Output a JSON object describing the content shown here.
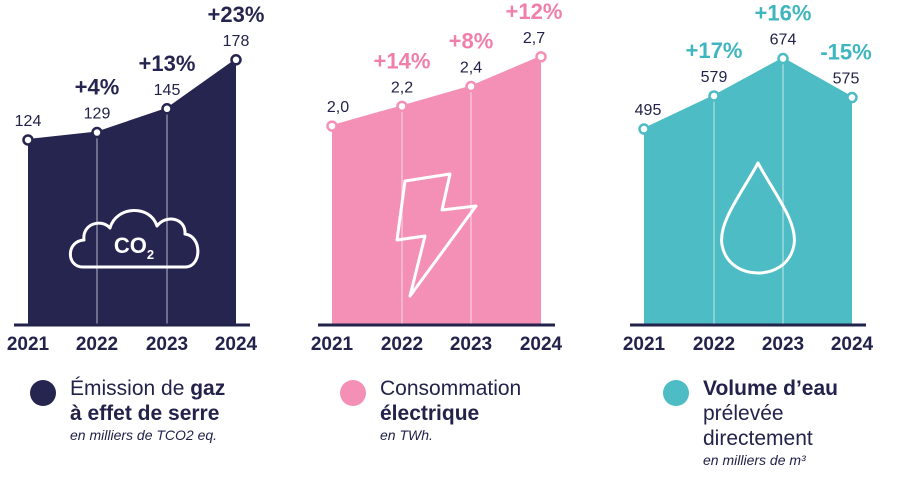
{
  "chart_data": [
    {
      "type": "area",
      "categories": [
        "2021",
        "2022",
        "2023",
        "2024"
      ],
      "values": [
        124,
        129,
        145,
        178
      ],
      "value_labels": [
        "124",
        "129",
        "145",
        "178"
      ],
      "changes": [
        "",
        "+4%",
        "+13%",
        "+23%"
      ],
      "ylim": [
        0,
        190
      ],
      "color": "#262550",
      "change_color": "#262550",
      "icon": "co2-cloud-icon",
      "icon_text": "CO2",
      "legend": {
        "lines": [
          [
            {
              "t": "Émission de ",
              "b": false
            },
            {
              "t": "gaz",
              "b": true
            }
          ],
          [
            {
              "t": "à effet de serre",
              "b": true
            }
          ]
        ],
        "unit": "en milliers de TCO2 eq."
      }
    },
    {
      "type": "area",
      "categories": [
        "2021",
        "2022",
        "2023",
        "2024"
      ],
      "values": [
        2.0,
        2.2,
        2.4,
        2.7
      ],
      "value_labels": [
        "2,0",
        "2,2",
        "2,4",
        "2,7"
      ],
      "changes": [
        "",
        "+14%",
        "+8%",
        "+12%"
      ],
      "ylim": [
        0,
        2.85
      ],
      "color": "#f490b5",
      "change_color": "#f07fa9",
      "icon": "lightning-icon",
      "legend": {
        "lines": [
          [
            {
              "t": "Consommation",
              "b": false
            }
          ],
          [
            {
              "t": "électrique",
              "b": true
            }
          ]
        ],
        "unit": "en TWh."
      }
    },
    {
      "type": "area",
      "categories": [
        "2021",
        "2022",
        "2023",
        "2024"
      ],
      "values": [
        495,
        579,
        674,
        575
      ],
      "value_labels": [
        "495",
        "579",
        "674",
        "575"
      ],
      "changes": [
        "",
        "+17%",
        "+16%",
        "-15%"
      ],
      "ylim": [
        0,
        716
      ],
      "color": "#4dbcc4",
      "change_color": "#3fb6bf",
      "icon": "water-drop-icon",
      "legend": {
        "lines": [
          [
            {
              "t": "Volume d’eau",
              "b": true
            }
          ],
          [
            {
              "t": "prélevée",
              "b": false
            }
          ],
          [
            {
              "t": "directement",
              "b": false
            }
          ]
        ],
        "unit": "en milliers de m³"
      }
    }
  ]
}
